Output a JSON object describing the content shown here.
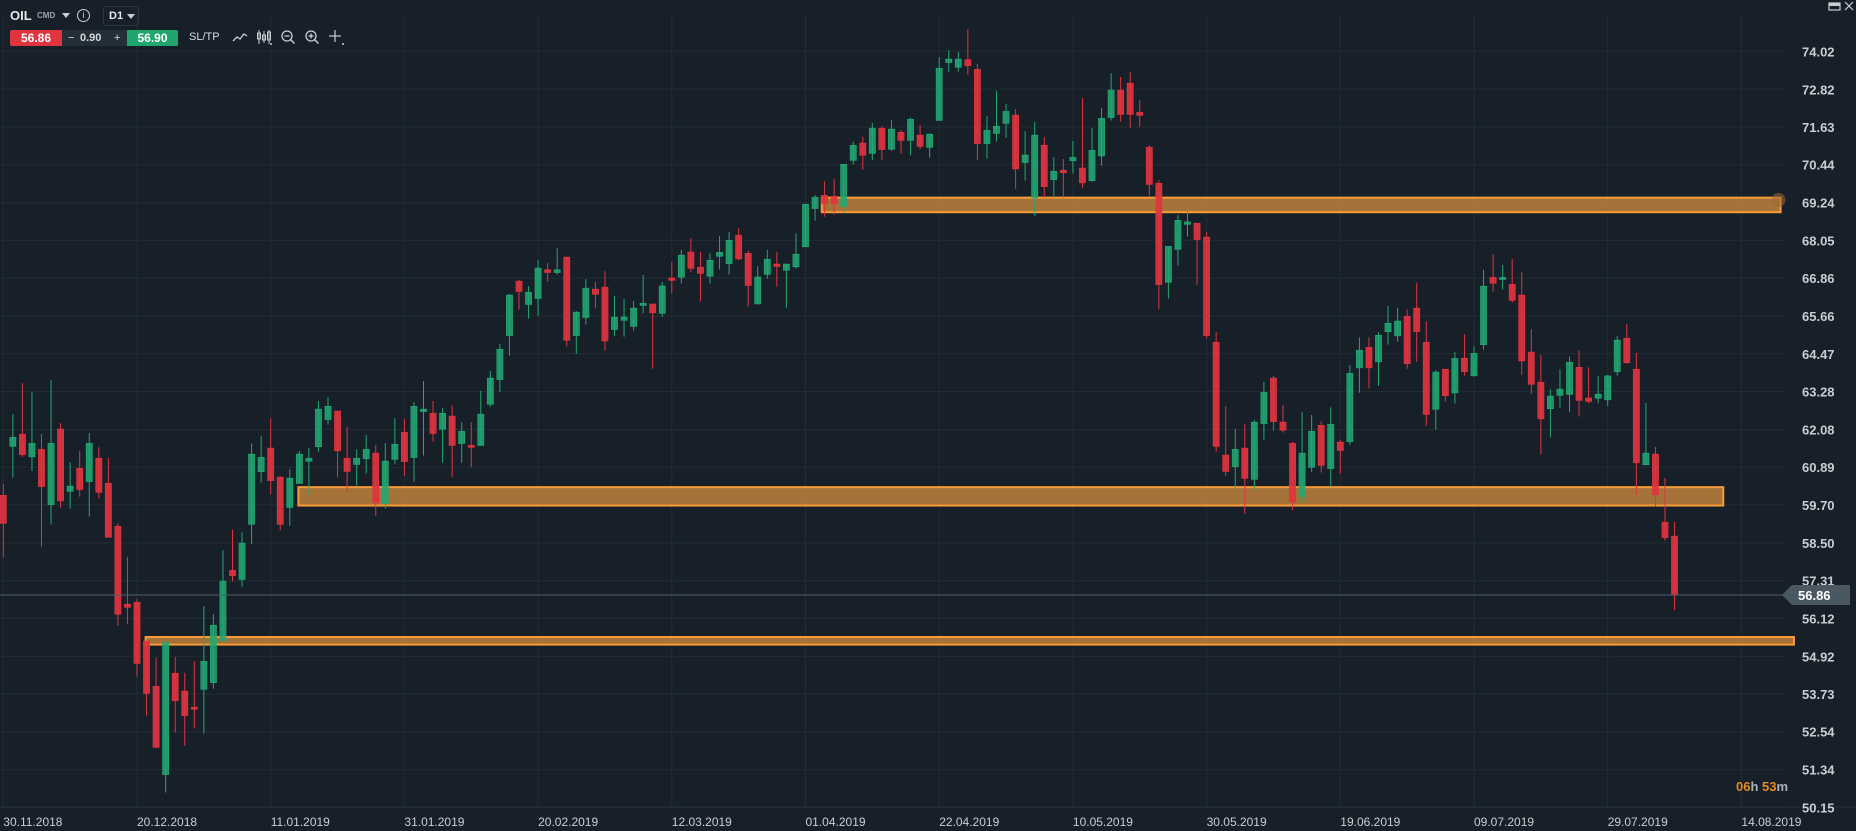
{
  "header": {
    "symbol": "OIL",
    "category": "CMD",
    "timeframe": "D1",
    "sell_price": "56.86",
    "spread_minus": "−",
    "spread_value": "0.90",
    "spread_plus": "+",
    "buy_price": "56.90",
    "sltp_label": "SL/TP",
    "tools": [
      "line-chart-icon",
      "candlestick-icon",
      "zoom-out-icon",
      "zoom-in-icon",
      "crosshair-icon"
    ]
  },
  "window_controls": [
    "minimize-icon",
    "close-icon"
  ],
  "countdown": {
    "hours": "06",
    "h": "h",
    "minutes": "53",
    "m": "m"
  },
  "colors": {
    "background": "#172029",
    "up": "#22a873",
    "down": "#e0343f",
    "grid": "#222c35",
    "zone_stroke": "#f89b36",
    "zone_fill": "#b57b3b",
    "price_tag": "#4a5863"
  },
  "chart_data": {
    "type": "candlestick",
    "title": "OIL D1",
    "current_price": "56.86",
    "ylim": [
      50.15,
      74.02
    ],
    "y_ticks": [
      "74.02",
      "72.82",
      "71.63",
      "70.44",
      "69.24",
      "68.05",
      "66.86",
      "65.66",
      "64.47",
      "63.28",
      "62.08",
      "60.89",
      "59.70",
      "58.50",
      "57.31",
      "56.12",
      "54.92",
      "53.73",
      "52.54",
      "51.34",
      "50.15"
    ],
    "x_ticks": [
      {
        "bar": 0,
        "label": "30.11.2018"
      },
      {
        "bar": 14,
        "label": "20.12.2018"
      },
      {
        "bar": 28,
        "label": "11.01.2019"
      },
      {
        "bar": 42,
        "label": "31.01.2019"
      },
      {
        "bar": 56,
        "label": "20.02.2019"
      },
      {
        "bar": 70,
        "label": "12.03.2019"
      },
      {
        "bar": 84,
        "label": "01.04.2019"
      },
      {
        "bar": 98,
        "label": "22.04.2019"
      },
      {
        "bar": 112,
        "label": "10.05.2019"
      },
      {
        "bar": 126,
        "label": "30.05.2019"
      },
      {
        "bar": 140,
        "label": "19.06.2019"
      },
      {
        "bar": 154,
        "label": "09.07.2019"
      },
      {
        "bar": 168,
        "label": "29.07.2019"
      },
      {
        "bar": 182,
        "label": "14.08.2019"
      }
    ],
    "zones": [
      {
        "name": "resistance-zone",
        "from_bar": 85.7,
        "to_bar": 186.1,
        "top": 69.4,
        "bottom": 68.94,
        "handle": true
      },
      {
        "name": "support-zone-upper",
        "from_bar": 30.9,
        "to_bar": 180.1,
        "top": 60.26,
        "bottom": 59.68
      },
      {
        "name": "support-zone-lower",
        "from_bar": 14.9,
        "to_bar": 187.5,
        "top": 55.53,
        "bottom": 55.29
      }
    ],
    "candles_format": [
      "open",
      "high",
      "low",
      "close"
    ],
    "candles": [
      [
        60.0,
        60.36,
        58.04,
        59.12
      ],
      [
        61.55,
        62.57,
        60.56,
        61.83
      ],
      [
        61.93,
        63.54,
        61.22,
        61.29
      ],
      [
        61.22,
        63.26,
        60.77,
        61.64
      ],
      [
        61.45,
        61.94,
        58.38,
        60.28
      ],
      [
        59.71,
        63.64,
        59.08,
        61.64
      ],
      [
        62.09,
        62.28,
        59.61,
        59.83
      ],
      [
        60.13,
        61.05,
        59.58,
        60.29
      ],
      [
        60.85,
        61.4,
        59.96,
        60.19
      ],
      [
        60.44,
        61.97,
        59.33,
        61.64
      ],
      [
        61.17,
        61.52,
        59.9,
        60.1
      ],
      [
        60.38,
        61.18,
        58.68,
        58.68
      ],
      [
        59.02,
        59.12,
        55.89,
        56.25
      ],
      [
        56.56,
        58.06,
        55.95,
        56.47
      ],
      [
        56.62,
        56.73,
        54.28,
        54.7
      ],
      [
        55.4,
        55.4,
        53.05,
        53.75
      ],
      [
        53.97,
        54.87,
        52.02,
        52.05
      ],
      [
        51.19,
        55.46,
        50.62,
        55.35
      ],
      [
        54.38,
        54.9,
        52.51,
        53.52
      ],
      [
        53.82,
        54.4,
        52.1,
        53.05
      ],
      [
        53.31,
        54.77,
        52.64,
        53.25
      ],
      [
        53.88,
        56.51,
        52.48,
        54.76
      ],
      [
        54.09,
        56.25,
        53.9,
        55.9
      ],
      [
        55.41,
        58.27,
        55.41,
        57.29
      ],
      [
        57.63,
        58.91,
        57.28,
        57.47
      ],
      [
        57.35,
        58.83,
        57.12,
        58.49
      ],
      [
        59.09,
        61.64,
        58.46,
        61.3
      ],
      [
        60.75,
        61.88,
        60.4,
        61.2
      ],
      [
        61.49,
        62.43,
        60.04,
        60.47
      ],
      [
        60.57,
        60.61,
        58.89,
        59.09
      ],
      [
        59.62,
        60.83,
        59.04,
        60.54
      ],
      [
        60.38,
        61.4,
        60.38,
        61.3
      ],
      [
        61.08,
        61.49,
        60.02,
        61.17
      ],
      [
        61.54,
        62.98,
        61.38,
        62.72
      ],
      [
        62.4,
        63.11,
        62.24,
        62.81
      ],
      [
        62.66,
        62.66,
        60.56,
        61.41
      ],
      [
        61.17,
        62.16,
        60.12,
        60.76
      ],
      [
        60.98,
        61.46,
        60.31,
        61.17
      ],
      [
        61.16,
        61.91,
        60.69,
        61.45
      ],
      [
        61.33,
        61.59,
        59.36,
        59.77
      ],
      [
        59.75,
        61.65,
        59.58,
        61.08
      ],
      [
        61.14,
        62.44,
        60.98,
        61.61
      ],
      [
        61.99,
        62.41,
        60.62,
        61.07
      ],
      [
        61.2,
        62.95,
        60.43,
        62.81
      ],
      [
        62.65,
        63.61,
        61.26,
        62.72
      ],
      [
        62.59,
        62.98,
        61.7,
        61.96
      ],
      [
        62.09,
        62.76,
        61.03,
        62.59
      ],
      [
        62.5,
        62.84,
        60.59,
        61.58
      ],
      [
        61.64,
        62.31,
        61.03,
        62.02
      ],
      [
        61.58,
        62.31,
        60.89,
        61.52
      ],
      [
        61.58,
        63.3,
        61.58,
        62.56
      ],
      [
        62.88,
        63.93,
        62.8,
        63.7
      ],
      [
        63.66,
        64.78,
        63.27,
        64.61
      ],
      [
        65.05,
        66.36,
        64.41,
        66.32
      ],
      [
        66.76,
        66.8,
        65.86,
        66.44
      ],
      [
        66.03,
        66.61,
        65.58,
        66.41
      ],
      [
        66.22,
        67.43,
        65.67,
        67.17
      ],
      [
        67.12,
        67.34,
        66.75,
        67.04
      ],
      [
        67.04,
        67.8,
        66.97,
        67.12
      ],
      [
        67.52,
        67.53,
        64.7,
        64.9
      ],
      [
        65.05,
        65.82,
        64.47,
        65.78
      ],
      [
        65.62,
        66.83,
        65.39,
        66.54
      ],
      [
        66.51,
        66.74,
        65.9,
        66.35
      ],
      [
        66.57,
        67.08,
        64.57,
        64.88
      ],
      [
        65.24,
        66.3,
        65.04,
        65.62
      ],
      [
        65.53,
        66.2,
        65.01,
        65.63
      ],
      [
        65.34,
        66.14,
        65.2,
        65.91
      ],
      [
        66.0,
        66.96,
        65.75,
        66.06
      ],
      [
        66.04,
        66.04,
        64.0,
        65.77
      ],
      [
        65.75,
        66.74,
        65.64,
        66.61
      ],
      [
        66.86,
        67.37,
        66.37,
        66.79
      ],
      [
        66.89,
        67.75,
        66.69,
        67.58
      ],
      [
        67.68,
        68.13,
        67.04,
        67.17
      ],
      [
        67.2,
        67.69,
        66.12,
        67.01
      ],
      [
        66.92,
        67.64,
        66.69,
        67.42
      ],
      [
        67.55,
        68.19,
        67.13,
        67.67
      ],
      [
        67.32,
        68.32,
        66.97,
        68.05
      ],
      [
        68.21,
        68.44,
        67.42,
        67.47
      ],
      [
        67.64,
        67.72,
        65.96,
        66.63
      ],
      [
        66.05,
        67.24,
        66.02,
        66.89
      ],
      [
        66.98,
        67.75,
        66.84,
        67.45
      ],
      [
        67.3,
        67.69,
        66.59,
        67.23
      ],
      [
        67.11,
        67.3,
        65.93,
        67.3
      ],
      [
        67.22,
        68.28,
        67.16,
        67.61
      ],
      [
        67.85,
        69.19,
        67.85,
        69.19
      ],
      [
        69.06,
        69.48,
        68.67,
        69.41
      ],
      [
        69.47,
        69.92,
        68.8,
        69.22
      ],
      [
        69.44,
        69.98,
        68.86,
        69.22
      ],
      [
        69.12,
        70.45,
        68.91,
        70.45
      ],
      [
        70.58,
        71.16,
        70.45,
        71.05
      ],
      [
        71.12,
        71.32,
        70.28,
        70.74
      ],
      [
        70.8,
        71.76,
        70.58,
        71.59
      ],
      [
        71.59,
        71.65,
        70.58,
        70.92
      ],
      [
        70.93,
        71.85,
        70.88,
        71.56
      ],
      [
        71.46,
        71.54,
        70.79,
        71.21
      ],
      [
        71.21,
        71.92,
        70.73,
        71.87
      ],
      [
        71.37,
        71.68,
        70.93,
        71.02
      ],
      [
        70.99,
        71.43,
        70.66,
        71.4
      ],
      [
        71.84,
        73.84,
        71.84,
        73.48
      ],
      [
        73.67,
        74.06,
        73.36,
        73.77
      ],
      [
        73.52,
        74.0,
        73.38,
        73.77
      ],
      [
        73.75,
        74.72,
        73.27,
        73.57
      ],
      [
        73.45,
        73.62,
        70.59,
        71.11
      ],
      [
        71.11,
        71.98,
        70.63,
        71.52
      ],
      [
        71.43,
        72.77,
        71.17,
        71.65
      ],
      [
        71.75,
        72.36,
        71.29,
        72.12
      ],
      [
        72.0,
        72.2,
        69.68,
        70.31
      ],
      [
        70.51,
        71.5,
        69.94,
        70.74
      ],
      [
        69.4,
        71.79,
        68.83,
        71.37
      ],
      [
        71.05,
        71.31,
        69.4,
        69.75
      ],
      [
        69.97,
        70.68,
        69.4,
        70.23
      ],
      [
        70.26,
        70.62,
        69.4,
        70.19
      ],
      [
        70.57,
        71.19,
        70.16,
        70.67
      ],
      [
        70.33,
        72.55,
        69.71,
        69.87
      ],
      [
        69.94,
        71.6,
        69.9,
        70.89
      ],
      [
        70.72,
        72.23,
        70.41,
        71.9
      ],
      [
        71.93,
        73.33,
        71.83,
        72.79
      ],
      [
        72.79,
        73.21,
        71.8,
        72.03
      ],
      [
        73.01,
        73.37,
        71.61,
        72.03
      ],
      [
        72.09,
        72.48,
        71.64,
        72.0
      ],
      [
        70.99,
        71.06,
        69.46,
        69.82
      ],
      [
        69.85,
        69.95,
        65.89,
        66.66
      ],
      [
        66.73,
        67.86,
        66.21,
        67.86
      ],
      [
        67.77,
        68.85,
        67.25,
        68.68
      ],
      [
        68.56,
        69.2,
        68.17,
        68.63
      ],
      [
        68.59,
        68.59,
        66.65,
        68.08
      ],
      [
        68.15,
        68.32,
        64.96,
        65.05
      ],
      [
        64.83,
        65.16,
        61.38,
        61.55
      ],
      [
        61.27,
        62.82,
        60.62,
        60.76
      ],
      [
        60.91,
        62.1,
        60.2,
        61.45
      ],
      [
        61.49,
        62.25,
        59.42,
        60.54
      ],
      [
        60.51,
        62.38,
        60.2,
        62.31
      ],
      [
        62.27,
        63.58,
        61.76,
        63.25
      ],
      [
        63.7,
        63.77,
        62.04,
        62.33
      ],
      [
        62.31,
        62.85,
        61.98,
        62.06
      ],
      [
        61.64,
        61.69,
        59.54,
        59.8
      ],
      [
        59.96,
        62.63,
        59.77,
        61.33
      ],
      [
        60.89,
        62.54,
        60.74,
        62.02
      ],
      [
        62.21,
        62.34,
        60.72,
        60.95
      ],
      [
        60.85,
        62.78,
        60.28,
        62.24
      ],
      [
        61.68,
        61.75,
        60.69,
        61.42
      ],
      [
        61.7,
        64.11,
        61.6,
        63.85
      ],
      [
        64.03,
        64.99,
        63.24,
        64.58
      ],
      [
        64.67,
        64.99,
        63.37,
        64.03
      ],
      [
        64.22,
        65.15,
        63.46,
        65.05
      ],
      [
        65.17,
        65.98,
        64.76,
        65.43
      ],
      [
        65.04,
        65.92,
        64.85,
        65.5
      ],
      [
        65.65,
        65.87,
        64.0,
        64.16
      ],
      [
        65.91,
        66.71,
        64.22,
        65.17
      ],
      [
        64.83,
        65.5,
        62.2,
        62.56
      ],
      [
        62.72,
        63.95,
        62.07,
        63.89
      ],
      [
        63.98,
        63.98,
        62.96,
        63.15
      ],
      [
        63.24,
        64.52,
        62.9,
        64.32
      ],
      [
        64.33,
        65.09,
        63.78,
        63.91
      ],
      [
        63.78,
        64.71,
        63.75,
        64.48
      ],
      [
        64.76,
        67.12,
        64.6,
        66.6
      ],
      [
        66.88,
        67.62,
        66.43,
        66.7
      ],
      [
        66.82,
        67.27,
        66.5,
        66.88
      ],
      [
        66.66,
        67.46,
        66.08,
        66.16
      ],
      [
        66.32,
        67.05,
        63.81,
        64.25
      ],
      [
        64.52,
        65.24,
        63.21,
        63.51
      ],
      [
        63.57,
        64.43,
        61.29,
        62.42
      ],
      [
        62.74,
        63.35,
        61.83,
        63.13
      ],
      [
        63.16,
        63.98,
        62.77,
        63.35
      ],
      [
        63.19,
        64.39,
        62.64,
        64.2
      ],
      [
        64.04,
        64.58,
        62.49,
        63.0
      ],
      [
        63.07,
        64.04,
        62.9,
        62.97
      ],
      [
        63.07,
        63.76,
        62.91,
        63.19
      ],
      [
        63.02,
        63.8,
        62.82,
        63.77
      ],
      [
        63.91,
        65.03,
        63.78,
        64.9
      ],
      [
        64.96,
        65.41,
        64.17,
        64.19
      ],
      [
        63.98,
        64.5,
        60.02,
        61.03
      ],
      [
        60.97,
        62.92,
        60.97,
        61.33
      ],
      [
        61.3,
        61.53,
        59.65,
        60.02
      ],
      [
        59.15,
        60.55,
        58.57,
        58.67
      ],
      [
        58.71,
        59.16,
        56.38,
        56.86
      ]
    ]
  }
}
